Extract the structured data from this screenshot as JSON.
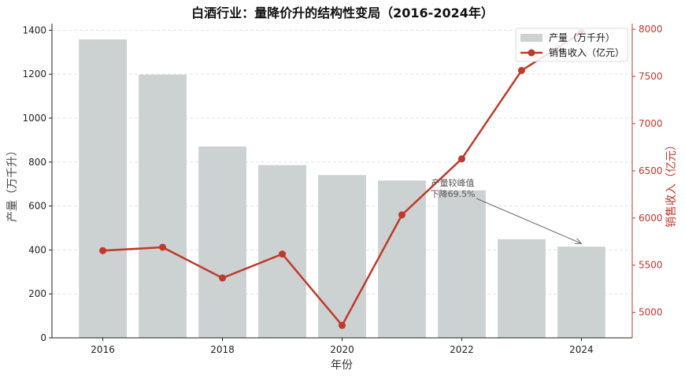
{
  "chart_data": {
    "type": "bar+line",
    "title": "白酒行业：量降价升的结构性变局（2016-2024年）",
    "xlabel": "年份",
    "ylabel_left": "产量（万千升）",
    "ylabel_right": "销售收入（亿元）",
    "x": [
      2016,
      2017,
      2018,
      2019,
      2020,
      2021,
      2022,
      2023,
      2024
    ],
    "x_ticks": [
      2016,
      2018,
      2020,
      2022,
      2024
    ],
    "y_left_ticks": [
      0,
      200,
      400,
      600,
      800,
      1000,
      1200,
      1400
    ],
    "y_right_ticks": [
      5000,
      5500,
      6000,
      6500,
      7000,
      7500,
      8000
    ],
    "ylim_left": [
      0,
      1430
    ],
    "ylim_right": [
      4730,
      8060
    ],
    "series": [
      {
        "name": "产量（万千升）",
        "kind": "bar",
        "axis": "left",
        "color": "#ccd1d1",
        "values": [
          1358,
          1198,
          871,
          786,
          741,
          716,
          671,
          449,
          415
        ]
      },
      {
        "name": "销售收入（亿元）",
        "kind": "line",
        "axis": "right",
        "color": "#c0392b",
        "values": [
          5654,
          5690,
          5364,
          5618,
          4862,
          6033,
          6627,
          7563,
          7964
        ]
      }
    ],
    "annotation": {
      "lines": [
        "产量较峰值",
        "下降69.5%"
      ],
      "points_to_x": 2024
    },
    "legend_position": "top-right",
    "grid": "horizontal dashed"
  }
}
